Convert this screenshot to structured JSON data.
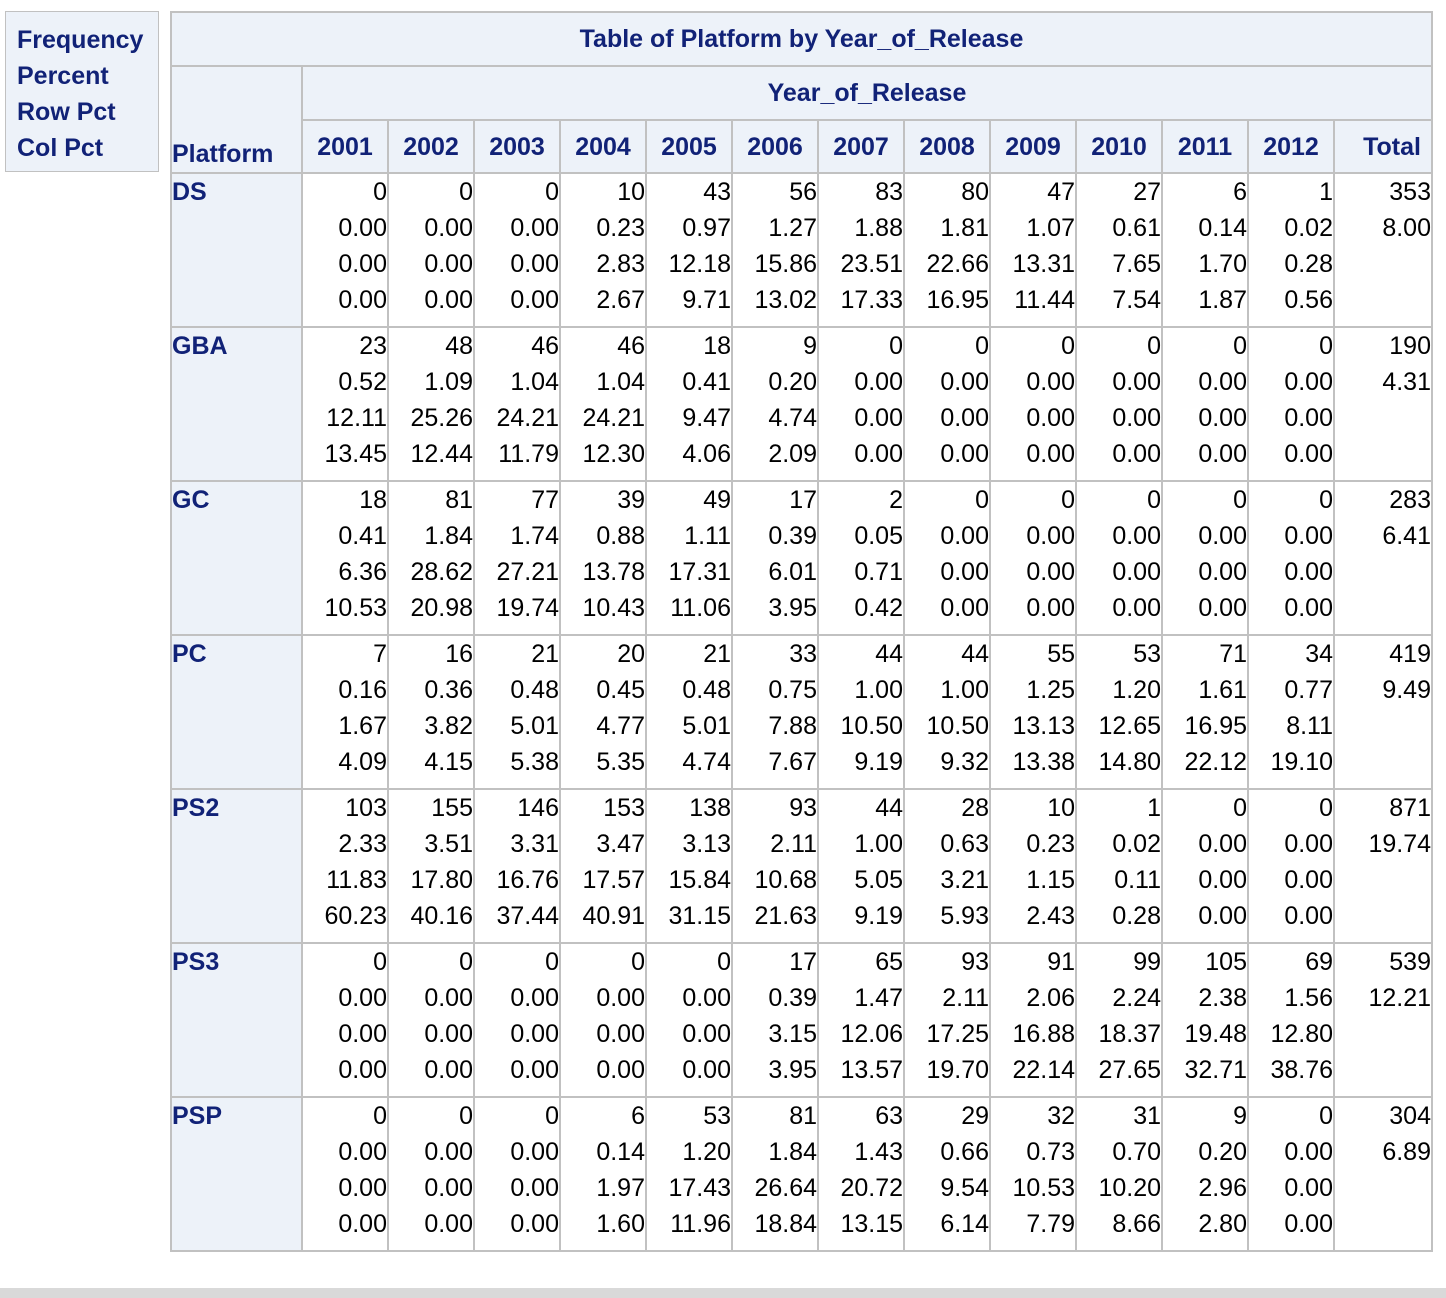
{
  "legend": [
    "Frequency",
    "Percent",
    "Row Pct",
    "Col Pct"
  ],
  "table": {
    "title": "Table of Platform by Year_of_Release",
    "column_group": "Year_of_Release",
    "row_header": "Platform",
    "years": [
      "2001",
      "2002",
      "2003",
      "2004",
      "2005",
      "2006",
      "2007",
      "2008",
      "2009",
      "2010",
      "2011",
      "2012"
    ],
    "total_label": "Total",
    "rows": [
      {
        "platform": "DS",
        "freq": [
          "0",
          "0",
          "0",
          "10",
          "43",
          "56",
          "83",
          "80",
          "47",
          "27",
          "6",
          "1"
        ],
        "pct": [
          "0.00",
          "0.00",
          "0.00",
          "0.23",
          "0.97",
          "1.27",
          "1.88",
          "1.81",
          "1.07",
          "0.61",
          "0.14",
          "0.02"
        ],
        "rowpct": [
          "0.00",
          "0.00",
          "0.00",
          "2.83",
          "12.18",
          "15.86",
          "23.51",
          "22.66",
          "13.31",
          "7.65",
          "1.70",
          "0.28"
        ],
        "colpct": [
          "0.00",
          "0.00",
          "0.00",
          "2.67",
          "9.71",
          "13.02",
          "17.33",
          "16.95",
          "11.44",
          "7.54",
          "1.87",
          "0.56"
        ],
        "total_freq": "353",
        "total_pct": "8.00"
      },
      {
        "platform": "GBA",
        "freq": [
          "23",
          "48",
          "46",
          "46",
          "18",
          "9",
          "0",
          "0",
          "0",
          "0",
          "0",
          "0"
        ],
        "pct": [
          "0.52",
          "1.09",
          "1.04",
          "1.04",
          "0.41",
          "0.20",
          "0.00",
          "0.00",
          "0.00",
          "0.00",
          "0.00",
          "0.00"
        ],
        "rowpct": [
          "12.11",
          "25.26",
          "24.21",
          "24.21",
          "9.47",
          "4.74",
          "0.00",
          "0.00",
          "0.00",
          "0.00",
          "0.00",
          "0.00"
        ],
        "colpct": [
          "13.45",
          "12.44",
          "11.79",
          "12.30",
          "4.06",
          "2.09",
          "0.00",
          "0.00",
          "0.00",
          "0.00",
          "0.00",
          "0.00"
        ],
        "total_freq": "190",
        "total_pct": "4.31"
      },
      {
        "platform": "GC",
        "freq": [
          "18",
          "81",
          "77",
          "39",
          "49",
          "17",
          "2",
          "0",
          "0",
          "0",
          "0",
          "0"
        ],
        "pct": [
          "0.41",
          "1.84",
          "1.74",
          "0.88",
          "1.11",
          "0.39",
          "0.05",
          "0.00",
          "0.00",
          "0.00",
          "0.00",
          "0.00"
        ],
        "rowpct": [
          "6.36",
          "28.62",
          "27.21",
          "13.78",
          "17.31",
          "6.01",
          "0.71",
          "0.00",
          "0.00",
          "0.00",
          "0.00",
          "0.00"
        ],
        "colpct": [
          "10.53",
          "20.98",
          "19.74",
          "10.43",
          "11.06",
          "3.95",
          "0.42",
          "0.00",
          "0.00",
          "0.00",
          "0.00",
          "0.00"
        ],
        "total_freq": "283",
        "total_pct": "6.41"
      },
      {
        "platform": "PC",
        "freq": [
          "7",
          "16",
          "21",
          "20",
          "21",
          "33",
          "44",
          "44",
          "55",
          "53",
          "71",
          "34"
        ],
        "pct": [
          "0.16",
          "0.36",
          "0.48",
          "0.45",
          "0.48",
          "0.75",
          "1.00",
          "1.00",
          "1.25",
          "1.20",
          "1.61",
          "0.77"
        ],
        "rowpct": [
          "1.67",
          "3.82",
          "5.01",
          "4.77",
          "5.01",
          "7.88",
          "10.50",
          "10.50",
          "13.13",
          "12.65",
          "16.95",
          "8.11"
        ],
        "colpct": [
          "4.09",
          "4.15",
          "5.38",
          "5.35",
          "4.74",
          "7.67",
          "9.19",
          "9.32",
          "13.38",
          "14.80",
          "22.12",
          "19.10"
        ],
        "total_freq": "419",
        "total_pct": "9.49"
      },
      {
        "platform": "PS2",
        "freq": [
          "103",
          "155",
          "146",
          "153",
          "138",
          "93",
          "44",
          "28",
          "10",
          "1",
          "0",
          "0"
        ],
        "pct": [
          "2.33",
          "3.51",
          "3.31",
          "3.47",
          "3.13",
          "2.11",
          "1.00",
          "0.63",
          "0.23",
          "0.02",
          "0.00",
          "0.00"
        ],
        "rowpct": [
          "11.83",
          "17.80",
          "16.76",
          "17.57",
          "15.84",
          "10.68",
          "5.05",
          "3.21",
          "1.15",
          "0.11",
          "0.00",
          "0.00"
        ],
        "colpct": [
          "60.23",
          "40.16",
          "37.44",
          "40.91",
          "31.15",
          "21.63",
          "9.19",
          "5.93",
          "2.43",
          "0.28",
          "0.00",
          "0.00"
        ],
        "total_freq": "871",
        "total_pct": "19.74"
      },
      {
        "platform": "PS3",
        "freq": [
          "0",
          "0",
          "0",
          "0",
          "0",
          "17",
          "65",
          "93",
          "91",
          "99",
          "105",
          "69"
        ],
        "pct": [
          "0.00",
          "0.00",
          "0.00",
          "0.00",
          "0.00",
          "0.39",
          "1.47",
          "2.11",
          "2.06",
          "2.24",
          "2.38",
          "1.56"
        ],
        "rowpct": [
          "0.00",
          "0.00",
          "0.00",
          "0.00",
          "0.00",
          "3.15",
          "12.06",
          "17.25",
          "16.88",
          "18.37",
          "19.48",
          "12.80"
        ],
        "colpct": [
          "0.00",
          "0.00",
          "0.00",
          "0.00",
          "0.00",
          "3.95",
          "13.57",
          "19.70",
          "22.14",
          "27.65",
          "32.71",
          "38.76"
        ],
        "total_freq": "539",
        "total_pct": "12.21"
      },
      {
        "platform": "PSP",
        "freq": [
          "0",
          "0",
          "0",
          "6",
          "53",
          "81",
          "63",
          "29",
          "32",
          "31",
          "9",
          "0"
        ],
        "pct": [
          "0.00",
          "0.00",
          "0.00",
          "0.14",
          "1.20",
          "1.84",
          "1.43",
          "0.66",
          "0.73",
          "0.70",
          "0.20",
          "0.00"
        ],
        "rowpct": [
          "0.00",
          "0.00",
          "0.00",
          "1.97",
          "17.43",
          "26.64",
          "20.72",
          "9.54",
          "10.53",
          "10.20",
          "2.96",
          "0.00"
        ],
        "colpct": [
          "0.00",
          "0.00",
          "0.00",
          "1.60",
          "11.96",
          "18.84",
          "13.15",
          "6.14",
          "7.79",
          "8.66",
          "2.80",
          "0.00"
        ],
        "total_freq": "304",
        "total_pct": "6.89"
      }
    ]
  }
}
